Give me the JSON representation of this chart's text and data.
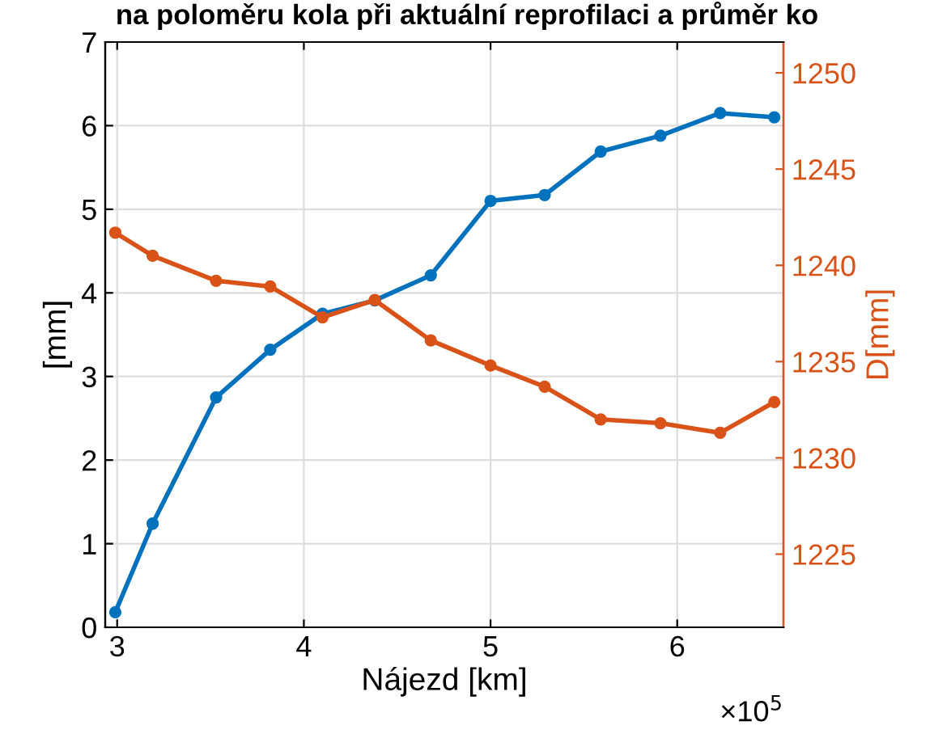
{
  "chart_data": {
    "type": "line",
    "title": "na poloměru kola při aktuální reprofilaci a průměr ko",
    "xlabel": "Nájezd [km]",
    "ylabel": "[mm]",
    "y2label": "D[mm]",
    "x": [
      2.99,
      3.19,
      3.53,
      3.82,
      4.1,
      4.38,
      4.68,
      5.0,
      5.29,
      5.59,
      5.91,
      6.23,
      6.52
    ],
    "series": [
      {
        "color": "#0072bd",
        "values": [
          0.18,
          1.24,
          2.75,
          3.32,
          3.75,
          3.91,
          4.21,
          5.1,
          5.17,
          5.69,
          5.88,
          6.15,
          6.1
        ]
      },
      {
        "color": "#d95319",
        "axis": "y2",
        "values": [
          1241.7,
          1240.5,
          1239.2,
          1238.9,
          1237.3,
          1238.2,
          1236.1,
          1234.8,
          1233.7,
          1232.0,
          1231.8,
          1231.3,
          1232.9
        ]
      }
    ],
    "xlim": [
      2.936,
      6.569
    ],
    "xticks": [
      3,
      4,
      5,
      6
    ],
    "ylim": [
      0,
      7
    ],
    "yticks": [
      0,
      1,
      2,
      3,
      4,
      5,
      6,
      7
    ],
    "y2lim": [
      1221.2,
      1251.6
    ],
    "y2ticks": [
      1225,
      1230,
      1235,
      1240,
      1245,
      1250
    ],
    "annotations": [
      "×10$^{5}$"
    ],
    "grid": true,
    "marker": "circle",
    "line_style": "solid"
  }
}
